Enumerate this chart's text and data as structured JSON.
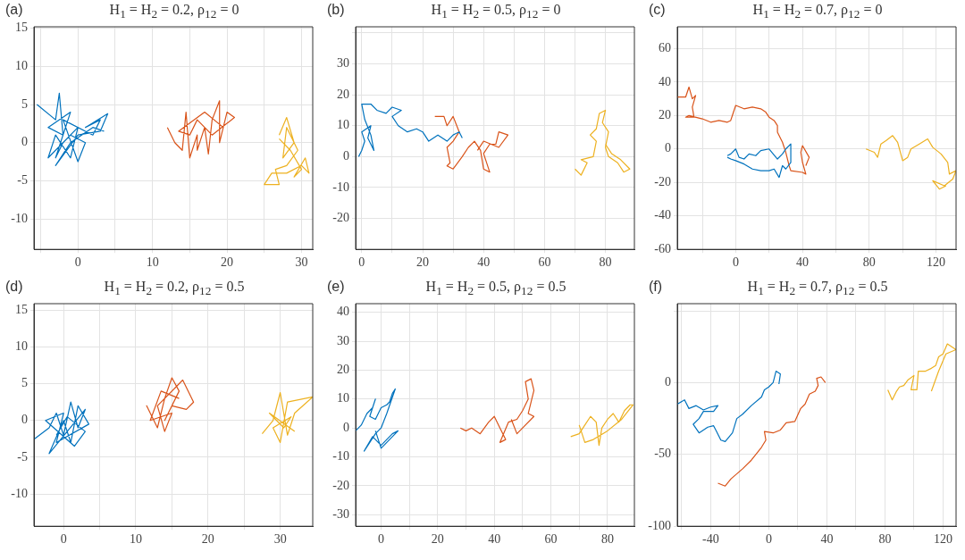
{
  "chart_data": [
    {
      "type": "line",
      "title": "H$_{1}$ = H$_{2}$ = 0.2, ρ$_{12}$ = 0",
      "annotations": [
        "(a)"
      ],
      "grid": true,
      "xlim": [
        -5.9,
        31.5
      ],
      "ylim": [
        -14,
        15.2
      ],
      "xticks": [
        {
          "value": -5,
          "label": null
        },
        0,
        {
          "value": 5,
          "label": null
        },
        10,
        {
          "value": 15,
          "label": null
        },
        20,
        {
          "value": 25,
          "label": null
        },
        30
      ],
      "yticks": [
        -10,
        -5,
        0,
        5,
        10,
        15
      ],
      "series": [
        {
          "color": "#0072bd",
          "x": [
            -5.5,
            -3,
            -2.5,
            -2,
            -4,
            -1,
            -3,
            -2,
            0,
            -1,
            -3,
            -4,
            -1,
            1,
            0,
            -2,
            2,
            3,
            1,
            4,
            3,
            0,
            -3,
            -1,
            2,
            3.5
          ],
          "values": [
            5,
            3,
            6.5,
            1,
            2,
            4,
            -2,
            0,
            2,
            -2,
            1,
            -2,
            1,
            0,
            -2.5,
            3,
            1,
            3,
            2,
            3.8,
            1.5,
            1,
            -3,
            0,
            2,
            1.5
          ]
        },
        {
          "color": "#d95319",
          "x": [
            12,
            13,
            14,
            14.5,
            15,
            16,
            16,
            17,
            17.5,
            18,
            19,
            19,
            20,
            21,
            18,
            16,
            15,
            13.5,
            17,
            19.5
          ],
          "values": [
            2,
            0,
            -1,
            4,
            -2,
            1,
            -1,
            2,
            -1.5,
            3,
            5.5,
            0,
            4,
            3.3,
            1,
            3,
            1,
            1.5,
            4,
            2
          ]
        },
        {
          "color": "#edb120",
          "x": [
            27,
            28,
            29,
            27.5,
            28,
            29.5,
            28,
            26.5,
            27,
            25,
            26,
            28,
            30,
            31,
            30.5,
            29,
            30,
            28.5,
            27
          ],
          "values": [
            1,
            3.3,
            0,
            -2,
            2,
            -1,
            -3,
            -3.5,
            -5.5,
            -5.5,
            -4,
            -4,
            -3,
            -4,
            -2,
            -4.5,
            -3.5,
            -1,
            0.5
          ]
        }
      ]
    },
    {
      "type": "line",
      "title": "H$_{1}$ = H$_{2}$ = 0.5, ρ$_{12}$ = 0",
      "annotations": [
        "(b)"
      ],
      "grid": true,
      "xlim": [
        -2,
        89.5
      ],
      "ylim": [
        -30,
        42
      ],
      "xticks": [
        0,
        {
          "value": 10,
          "label": null
        },
        20,
        {
          "value": 30,
          "label": null
        },
        40,
        {
          "value": 50,
          "label": null
        },
        60,
        {
          "value": 70,
          "label": null
        },
        80
      ],
      "yticks": [
        -20,
        -10,
        0,
        10,
        20,
        30,
        {
          "value": 40,
          "label": null
        }
      ],
      "series": [
        {
          "color": "#0072bd",
          "x": [
            -1,
            0,
            1,
            0,
            3,
            2,
            4,
            3,
            1,
            0,
            3,
            5,
            8,
            10,
            13,
            10,
            12,
            15,
            18,
            20,
            22,
            25,
            28,
            30,
            32,
            33
          ],
          "values": [
            0,
            2,
            5,
            8,
            10,
            6,
            2,
            7,
            12,
            17,
            17,
            15,
            14,
            16,
            15,
            13,
            10,
            8,
            9,
            8,
            5,
            7,
            5,
            7,
            8,
            6
          ]
        },
        {
          "color": "#d95319",
          "x": [
            24,
            27,
            28,
            30,
            32,
            30,
            28,
            29,
            28,
            30,
            33,
            35,
            37,
            39,
            40,
            42,
            40,
            42,
            44,
            45,
            48,
            45,
            40,
            38
          ],
          "values": [
            13,
            13,
            10,
            13,
            8,
            5,
            3,
            -2,
            -3,
            -4,
            0,
            3,
            5,
            2,
            -4,
            -5,
            1,
            4,
            4,
            8,
            7,
            3,
            5,
            2
          ]
        },
        {
          "color": "#edb120",
          "x": [
            70,
            72,
            74,
            72,
            76,
            77,
            75,
            77,
            78,
            80,
            79,
            81,
            80,
            81,
            84,
            86,
            88,
            85,
            82,
            80
          ],
          "values": [
            -4,
            -6,
            -2,
            -1,
            0,
            5,
            7,
            9,
            14,
            15,
            11,
            8,
            3,
            0,
            -2,
            -5,
            -4,
            -1,
            1,
            4
          ]
        }
      ]
    },
    {
      "type": "line",
      "title": "H$_{1}$ = H$_{2}$ = 0.7, ρ$_{12}$ = 0",
      "annotations": [
        "(c)"
      ],
      "grid": true,
      "xlim": [
        -35,
        132
      ],
      "ylim": [
        -60,
        73
      ],
      "xticks": [
        {
          "value": -20,
          "label": null
        },
        0,
        {
          "value": 20,
          "label": null
        },
        40,
        {
          "value": 60,
          "label": null
        },
        80,
        {
          "value": 100,
          "label": null
        },
        120
      ],
      "yticks": [
        -60,
        -40,
        -20,
        0,
        20,
        40,
        60
      ],
      "series": [
        {
          "color": "#0072bd",
          "x": [
            -5,
            -3,
            0,
            2,
            5,
            8,
            12,
            15,
            20,
            25,
            28,
            30,
            33,
            33,
            30,
            28,
            26,
            23,
            20,
            15,
            10,
            5,
            0,
            -3,
            -5
          ],
          "values": [
            -4,
            -3,
            0,
            -5,
            -6,
            -3,
            -4,
            -1,
            0,
            -6,
            -3,
            0,
            3,
            -8,
            -12,
            -10,
            -17,
            -12,
            -13,
            -13,
            -12,
            -9,
            -7,
            -6,
            -5
          ]
        },
        {
          "color": "#d95319",
          "x": [
            -35,
            -30,
            -28,
            -26,
            -24,
            -26,
            -25,
            -30,
            -28,
            -20,
            -15,
            -10,
            -5,
            -3,
            -2,
            0,
            5,
            10,
            15,
            18,
            20,
            23,
            25,
            25,
            28,
            30,
            32,
            33,
            40,
            42,
            40,
            39,
            40,
            44,
            42
          ],
          "values": [
            31,
            31,
            37,
            30,
            32,
            25,
            19,
            19,
            20,
            18,
            16,
            17,
            16,
            17,
            20,
            26,
            24,
            25,
            24,
            22,
            19,
            17,
            14,
            10,
            4,
            -2,
            -10,
            -13,
            -14,
            -15,
            -8,
            -2,
            2,
            -5,
            -10
          ]
        },
        {
          "color": "#edb120",
          "x": [
            78,
            83,
            85,
            87,
            90,
            94,
            97,
            100,
            103,
            105,
            110,
            115,
            118,
            123,
            127,
            128,
            132,
            130,
            125,
            118,
            122,
            126
          ],
          "values": [
            0,
            -2,
            -5,
            3,
            5,
            8,
            4,
            -7,
            -5,
            0,
            3,
            6,
            1,
            -3,
            -8,
            -15,
            -13,
            -18,
            -22,
            -19,
            -24,
            -22
          ]
        }
      ]
    },
    {
      "type": "line",
      "title": "H$_{1}$ = H$_{2}$ = 0.2, ρ$_{12}$ = 0.5",
      "annotations": [
        "(d)"
      ],
      "grid": true,
      "xlim": [
        -4.1,
        34.5
      ],
      "ylim": [
        -14.4,
        15.9
      ],
      "xticks": [
        0,
        {
          "value": 5,
          "label": null
        },
        10,
        {
          "value": 15,
          "label": null
        },
        20,
        {
          "value": 25,
          "label": null
        },
        30
      ],
      "yticks": [
        -10,
        -5,
        0,
        5,
        10,
        15
      ],
      "series": [
        {
          "color": "#0072bd",
          "x": [
            -4,
            -2,
            -1,
            0,
            1,
            2,
            3,
            -2,
            0,
            1,
            2,
            3.5,
            -1,
            0,
            -2.5,
            1.5,
            3,
            0.5,
            -1
          ],
          "values": [
            -2.5,
            -1,
            1,
            -2,
            2.5,
            -1,
            1.5,
            -4.5,
            0,
            -3,
            2,
            -0.5,
            -3,
            1,
            0,
            -3.5,
            -1.5,
            0.5,
            -2
          ]
        },
        {
          "color": "#d95319",
          "x": [
            12,
            11.5,
            13,
            14,
            15,
            16,
            14,
            15,
            17,
            18,
            16.5,
            13,
            14,
            15,
            12,
            13.5,
            16
          ],
          "values": [
            1,
            2,
            -1,
            3,
            5.8,
            4,
            0,
            2,
            1.5,
            2.5,
            5.5,
            2,
            -1.5,
            1,
            0,
            4,
            3
          ]
        },
        {
          "color": "#edb120",
          "x": [
            27.5,
            29,
            30,
            31,
            32,
            34.5,
            31,
            30,
            29,
            31.5,
            30.5,
            28.5,
            32
          ],
          "values": [
            -1.8,
            0,
            3.8,
            -2,
            1,
            3.2,
            2.5,
            -3,
            -1,
            0.5,
            -1,
            1,
            -1.5
          ]
        }
      ]
    },
    {
      "type": "line",
      "title": "H$_{1}$ = H$_{2}$ = 0.5, ρ$_{12}$ = 0.5",
      "annotations": [
        "(e)"
      ],
      "grid": true,
      "xlim": [
        -9,
        89.5
      ],
      "ylim": [
        -34,
        43
      ],
      "xticks": [
        0,
        {
          "value": 10,
          "label": null
        },
        20,
        {
          "value": 30,
          "label": null
        },
        40,
        {
          "value": 50,
          "label": null
        },
        60,
        {
          "value": 70,
          "label": null
        },
        80
      ],
      "yticks": [
        -30,
        -20,
        -10,
        0,
        10,
        20,
        30,
        40
      ],
      "series": [
        {
          "color": "#0072bd",
          "x": [
            -9,
            -7,
            -5,
            -3,
            -2,
            -4,
            -2,
            0,
            2,
            3,
            4,
            5,
            2,
            0,
            -2,
            -4,
            -6,
            -3,
            0,
            2,
            4,
            6,
            3,
            0,
            -2
          ],
          "values": [
            -1,
            1,
            5,
            7,
            10,
            4,
            3,
            7,
            8,
            9,
            12,
            13.5,
            5,
            0,
            -2,
            -5,
            -8,
            -3,
            -6,
            -4,
            -2,
            -1,
            -4,
            -7,
            -1
          ]
        },
        {
          "color": "#d95319",
          "x": [
            28,
            30,
            32,
            35,
            38,
            40,
            42,
            44,
            42,
            45,
            48,
            50,
            52,
            51,
            53,
            54,
            52,
            54,
            50,
            48,
            46
          ],
          "values": [
            0,
            -1,
            0,
            -2,
            2,
            4,
            0,
            -4,
            -5,
            2,
            3,
            6,
            10,
            16,
            17,
            13,
            5,
            4,
            0,
            -2,
            3
          ]
        },
        {
          "color": "#edb120",
          "x": [
            67,
            70,
            72,
            74,
            76,
            77,
            78,
            80,
            82,
            84,
            86,
            88,
            89,
            85,
            80,
            75,
            72,
            70
          ],
          "values": [
            -3,
            -2,
            1,
            4,
            2,
            -6,
            0,
            3,
            5,
            2,
            6,
            8,
            8,
            3,
            -1,
            -4,
            -5,
            1
          ]
        }
      ]
    },
    {
      "type": "line",
      "title": "H$_{1}$ = H$_{2}$ = 0.7, ρ$_{12}$ = 0.5",
      "annotations": [
        "(f)"
      ],
      "grid": true,
      "xlim": [
        -63,
        129
      ],
      "ylim": [
        -100,
        55
      ],
      "xticks": [
        {
          "value": -60,
          "label": null
        },
        -40,
        {
          "value": -20,
          "label": null
        },
        0,
        {
          "value": 20,
          "label": null
        },
        40,
        {
          "value": 60,
          "label": null
        },
        80,
        {
          "value": 100,
          "label": null
        },
        120
      ],
      "yticks": [
        -100,
        -50,
        0,
        {
          "value": 50,
          "label": null
        }
      ],
      "series": [
        {
          "color": "#0072bd",
          "x": [
            -63,
            -58,
            -55,
            -50,
            -45,
            -40,
            -35,
            -38,
            -45,
            -48,
            -52,
            -48,
            -42,
            -38,
            -36,
            -33,
            -30,
            -25,
            -22,
            -18,
            -12,
            -5,
            -3,
            0,
            3,
            5,
            8,
            7
          ],
          "values": [
            -15,
            -12,
            -18,
            -16,
            -19,
            -17,
            -16,
            -20,
            -20,
            -25,
            -29,
            -35,
            -31,
            -30,
            -34,
            -40,
            -41,
            -35,
            -25,
            -22,
            -16,
            -10,
            -5,
            -3,
            0,
            8,
            6,
            -1
          ]
        },
        {
          "color": "#d95319",
          "x": [
            -35,
            -30,
            -26,
            -18,
            -12,
            -5,
            -2,
            -3,
            3,
            8,
            12,
            18,
            22,
            25,
            28,
            32,
            34,
            33,
            36,
            39
          ],
          "values": [
            -70,
            -72,
            -67,
            -60,
            -54,
            -45,
            -40,
            -34,
            -35,
            -33,
            -28,
            -27,
            -18,
            -15,
            -8,
            -6,
            -2,
            3,
            4,
            0
          ]
        },
        {
          "color": "#edb120",
          "x": [
            82,
            85,
            88,
            90,
            93,
            96,
            100,
            98,
            102,
            103,
            108,
            112,
            115,
            117,
            120,
            123,
            126,
            129,
            122,
            117,
            112
          ],
          "values": [
            -5,
            -12,
            -6,
            -3,
            -2,
            2,
            5,
            -5,
            -5,
            8,
            8,
            10,
            12,
            18,
            20,
            27,
            25,
            23,
            20,
            8,
            -6
          ]
        }
      ]
    }
  ]
}
